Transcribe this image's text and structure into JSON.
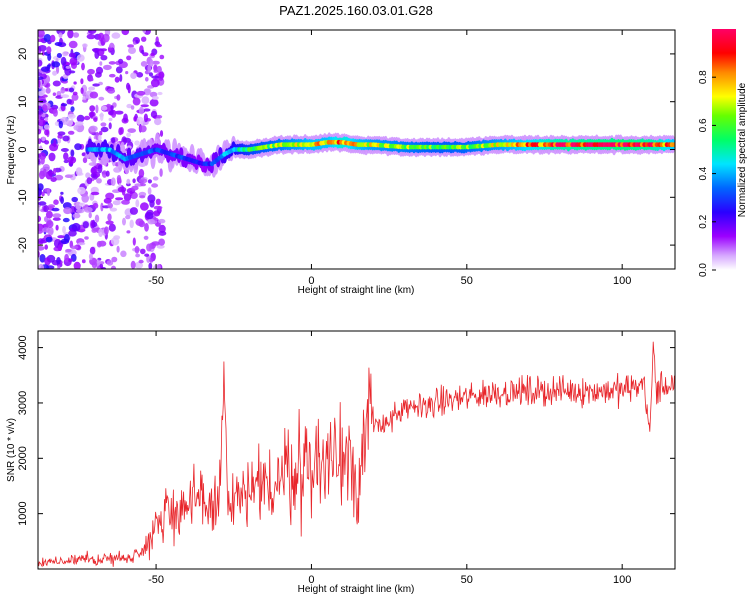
{
  "title": "PAZ1.2025.160.03.01.G28",
  "chart_data": [
    {
      "type": "heatmap",
      "xlabel": "Height of straight line (km)",
      "ylabel": "Frequency (Hz)",
      "xlim": [
        -88,
        117
      ],
      "ylim": [
        -25,
        25
      ],
      "x_ticks": [
        -50,
        0,
        50,
        100
      ],
      "y_ticks": [
        -20,
        -10,
        0,
        10,
        20
      ],
      "colorbar": {
        "label": "Normalized spectral amplitude",
        "range": [
          0,
          1
        ],
        "ticks": [
          0.0,
          0.2,
          0.4,
          0.6,
          0.8
        ],
        "tick_labels": [
          "0.0",
          "0.2",
          "0.4",
          "0.6",
          "0.8"
        ],
        "colormap": [
          "#ffffff",
          "#9b00ff",
          "#0000ff",
          "#00ffff",
          "#00ff66",
          "#ffff00",
          "#ff6600",
          "#ff0000",
          "#ff0066"
        ]
      },
      "ridge": {
        "x": [
          -72,
          -65,
          -60,
          -55,
          -50,
          -45,
          -40,
          -35,
          -32,
          -28,
          -25,
          -20,
          -15,
          -10,
          -5,
          0,
          5,
          10,
          15,
          20,
          30,
          40,
          50,
          60,
          70,
          80,
          90,
          100,
          110,
          117
        ],
        "frequency": [
          0,
          0,
          -2,
          -1,
          0,
          -1,
          -2,
          -3,
          -3,
          -1,
          0,
          0,
          0.5,
          1,
          1,
          1,
          1.5,
          1.5,
          1,
          1,
          0.5,
          0.5,
          0.5,
          1,
          1,
          1,
          1,
          1,
          1,
          1
        ],
        "amplitude": [
          0.35,
          0.4,
          0.35,
          0.35,
          0.3,
          0.3,
          0.3,
          0.25,
          0.3,
          0.4,
          0.45,
          0.55,
          0.6,
          0.65,
          0.7,
          0.75,
          0.75,
          0.85,
          0.75,
          0.7,
          0.65,
          0.6,
          0.62,
          0.7,
          0.8,
          0.9,
          0.92,
          0.95,
          0.9,
          0.75
        ]
      },
      "grid": false
    },
    {
      "type": "line",
      "xlabel": "Height of straight line (km)",
      "ylabel": "SNR (10 * v/v)",
      "xlim": [
        -88,
        117
      ],
      "ylim": [
        0,
        4300
      ],
      "x_ticks": [
        -50,
        0,
        50,
        100
      ],
      "y_ticks": [
        1000,
        2000,
        3000,
        4000
      ],
      "series": [
        {
          "color": "#e8262b",
          "x": [
            -88,
            -80,
            -70,
            -62,
            -58,
            -55,
            -50,
            -47,
            -45,
            -42,
            -38,
            -35,
            -30,
            -28,
            -27,
            -25,
            -20,
            -17,
            -15,
            -12,
            -10,
            -5,
            0,
            5,
            8,
            10,
            13,
            15,
            17,
            20,
            25,
            30,
            35,
            40,
            45,
            50,
            55,
            60,
            70,
            80,
            90,
            100,
            105,
            107,
            109,
            110,
            111,
            113,
            117
          ],
          "values": [
            120,
            140,
            170,
            200,
            220,
            300,
            800,
            1050,
            1050,
            1100,
            1150,
            1200,
            1150,
            3200,
            1150,
            1200,
            1300,
            1400,
            1450,
            1600,
            1700,
            1800,
            1900,
            1950,
            2000,
            2100,
            2250,
            1300,
            2400,
            2550,
            2700,
            2850,
            2950,
            3000,
            3050,
            3100,
            3150,
            3200,
            3200,
            3220,
            3220,
            3230,
            3300,
            3400,
            2400,
            4100,
            3200,
            3300,
            3350
          ]
        }
      ],
      "grid": false
    }
  ]
}
